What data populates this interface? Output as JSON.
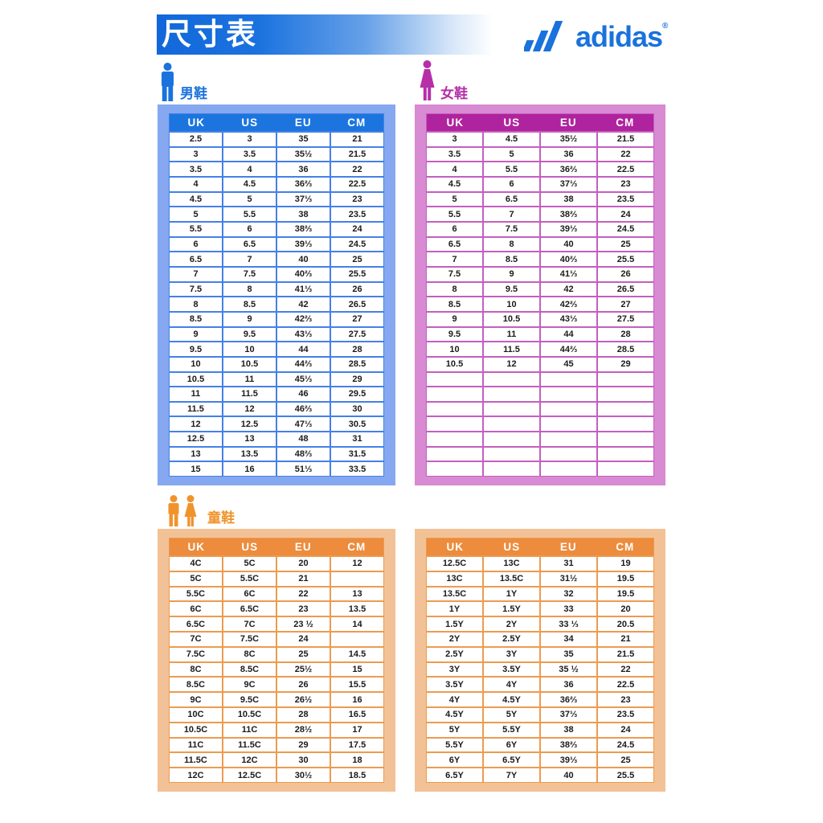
{
  "page": {
    "title": "尺寸表",
    "brand": "adidas",
    "reg_mark": "®"
  },
  "colors": {
    "brand_blue": "#1a72dc",
    "men": {
      "frame": "#86a8f0",
      "grid": "#4480e8",
      "header": "#1c75de",
      "label": "#1a72dc"
    },
    "women": {
      "frame": "#d88ad2",
      "grid": "#c45fc0",
      "header": "#b0239e",
      "label": "#b62fa8"
    },
    "kids": {
      "frame": "#f2c296",
      "grid": "#ec9b50",
      "header": "#ec8c3c",
      "label": "#f0932c"
    }
  },
  "sections": {
    "men": {
      "label": "男鞋",
      "columns": [
        "UK",
        "US",
        "EU",
        "CM"
      ],
      "rows": [
        [
          "2.5",
          "3",
          "35",
          "21"
        ],
        [
          "3",
          "3.5",
          "35½",
          "21.5"
        ],
        [
          "3.5",
          "4",
          "36",
          "22"
        ],
        [
          "4",
          "4.5",
          "36⅔",
          "22.5"
        ],
        [
          "4.5",
          "5",
          "37⅓",
          "23"
        ],
        [
          "5",
          "5.5",
          "38",
          "23.5"
        ],
        [
          "5.5",
          "6",
          "38⅔",
          "24"
        ],
        [
          "6",
          "6.5",
          "39⅓",
          "24.5"
        ],
        [
          "6.5",
          "7",
          "40",
          "25"
        ],
        [
          "7",
          "7.5",
          "40⅔",
          "25.5"
        ],
        [
          "7.5",
          "8",
          "41⅓",
          "26"
        ],
        [
          "8",
          "8.5",
          "42",
          "26.5"
        ],
        [
          "8.5",
          "9",
          "42⅔",
          "27"
        ],
        [
          "9",
          "9.5",
          "43⅓",
          "27.5"
        ],
        [
          "9.5",
          "10",
          "44",
          "28"
        ],
        [
          "10",
          "10.5",
          "44⅔",
          "28.5"
        ],
        [
          "10.5",
          "11",
          "45⅓",
          "29"
        ],
        [
          "11",
          "11.5",
          "46",
          "29.5"
        ],
        [
          "11.5",
          "12",
          "46⅔",
          "30"
        ],
        [
          "12",
          "12.5",
          "47⅓",
          "30.5"
        ],
        [
          "12.5",
          "13",
          "48",
          "31"
        ],
        [
          "13",
          "13.5",
          "48⅔",
          "31.5"
        ],
        [
          "15",
          "16",
          "51⅓",
          "33.5"
        ]
      ]
    },
    "women": {
      "label": "女鞋",
      "columns": [
        "UK",
        "US",
        "EU",
        "CM"
      ],
      "rows": [
        [
          "3",
          "4.5",
          "35½",
          "21.5"
        ],
        [
          "3.5",
          "5",
          "36",
          "22"
        ],
        [
          "4",
          "5.5",
          "36⅔",
          "22.5"
        ],
        [
          "4.5",
          "6",
          "37⅓",
          "23"
        ],
        [
          "5",
          "6.5",
          "38",
          "23.5"
        ],
        [
          "5.5",
          "7",
          "38⅔",
          "24"
        ],
        [
          "6",
          "7.5",
          "39⅓",
          "24.5"
        ],
        [
          "6.5",
          "8",
          "40",
          "25"
        ],
        [
          "7",
          "8.5",
          "40⅔",
          "25.5"
        ],
        [
          "7.5",
          "9",
          "41⅓",
          "26"
        ],
        [
          "8",
          "9.5",
          "42",
          "26.5"
        ],
        [
          "8.5",
          "10",
          "42⅔",
          "27"
        ],
        [
          "9",
          "10.5",
          "43⅓",
          "27.5"
        ],
        [
          "9.5",
          "11",
          "44",
          "28"
        ],
        [
          "10",
          "11.5",
          "44⅔",
          "28.5"
        ],
        [
          "10.5",
          "12",
          "45",
          "29"
        ]
      ],
      "empty_rows": 7
    },
    "kids": {
      "label": "童鞋",
      "columns": [
        "UK",
        "US",
        "EU",
        "CM"
      ],
      "left_rows": [
        [
          "4C",
          "5C",
          "20",
          "12"
        ],
        [
          "5C",
          "5.5C",
          "21",
          ""
        ],
        [
          "5.5C",
          "6C",
          "22",
          "13"
        ],
        [
          "6C",
          "6.5C",
          "23",
          "13.5"
        ],
        [
          "6.5C",
          "7C",
          "23 ½",
          "14"
        ],
        [
          "7C",
          "7.5C",
          "24",
          ""
        ],
        [
          "7.5C",
          "8C",
          "25",
          "14.5"
        ],
        [
          "8C",
          "8.5C",
          "25½",
          "15"
        ],
        [
          "8.5C",
          "9C",
          "26",
          "15.5"
        ],
        [
          "9C",
          "9.5C",
          "26½",
          "16"
        ],
        [
          "10C",
          "10.5C",
          "28",
          "16.5"
        ],
        [
          "10.5C",
          "11C",
          "28½",
          "17"
        ],
        [
          "11C",
          "11.5C",
          "29",
          "17.5"
        ],
        [
          "11.5C",
          "12C",
          "30",
          "18"
        ],
        [
          "12C",
          "12.5C",
          "30½",
          "18.5"
        ]
      ],
      "right_rows": [
        [
          "12.5C",
          "13C",
          "31",
          "19"
        ],
        [
          "13C",
          "13.5C",
          "31½",
          "19.5"
        ],
        [
          "13.5C",
          "1Y",
          "32",
          "19.5"
        ],
        [
          "1Y",
          "1.5Y",
          "33",
          "20"
        ],
        [
          "1.5Y",
          "2Y",
          "33 ⅓",
          "20.5"
        ],
        [
          "2Y",
          "2.5Y",
          "34",
          "21"
        ],
        [
          "2.5Y",
          "3Y",
          "35",
          "21.5"
        ],
        [
          "3Y",
          "3.5Y",
          "35 ½",
          "22"
        ],
        [
          "3.5Y",
          "4Y",
          "36",
          "22.5"
        ],
        [
          "4Y",
          "4.5Y",
          "36⅔",
          "23"
        ],
        [
          "4.5Y",
          "5Y",
          "37⅓",
          "23.5"
        ],
        [
          "5Y",
          "5.5Y",
          "38",
          "24"
        ],
        [
          "5.5Y",
          "6Y",
          "38⅔",
          "24.5"
        ],
        [
          "6Y",
          "6.5Y",
          "39⅓",
          "25"
        ],
        [
          "6.5Y",
          "7Y",
          "40",
          "25.5"
        ]
      ]
    }
  }
}
